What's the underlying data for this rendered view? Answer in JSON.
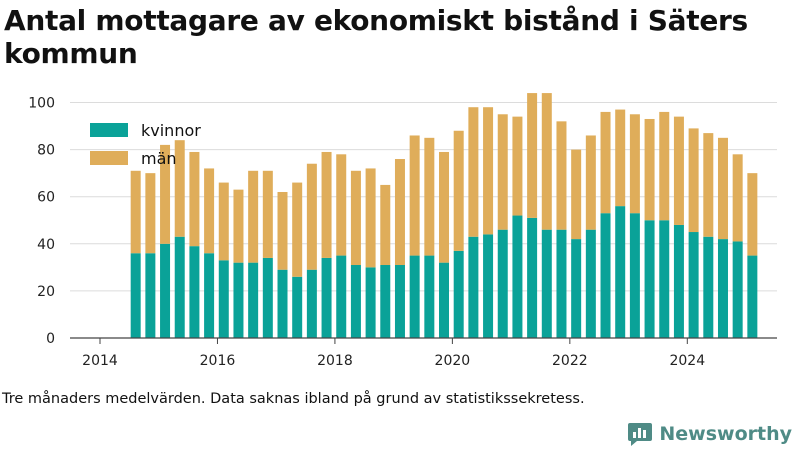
{
  "title": "Antal mottagare av ekonomiskt bistånd i Säters kommun",
  "note": "Tre månaders medelvärden. Data saknas ibland på grund av statistikssekretess.",
  "brand": {
    "name": "Newsworthy",
    "icon": "chat-bubble-bar-chart-icon"
  },
  "chart_data": {
    "type": "bar",
    "stacked": true,
    "title": "Antal mottagare av ekonomiskt bistånd i Säters kommun",
    "x_start": "2014-04",
    "x_step_months": 3,
    "x_ticks": [
      2014,
      2016,
      2018,
      2020,
      2022,
      2024
    ],
    "y_ticks": [
      0,
      20,
      40,
      60,
      80,
      100
    ],
    "ylim": [
      0,
      110
    ],
    "grid": true,
    "legend_position": "top-left",
    "series": [
      {
        "name": "kvinnor",
        "color": "#0aa298",
        "values": [
          36,
          36,
          40,
          43,
          39,
          36,
          33,
          32,
          32,
          34,
          29,
          26,
          29,
          34,
          35,
          31,
          30,
          31,
          31,
          35,
          35,
          32,
          37,
          43,
          44,
          46,
          52,
          51,
          46,
          46,
          42,
          46,
          53,
          56,
          53,
          50,
          50,
          48,
          45,
          43,
          42,
          41,
          35
        ]
      },
      {
        "name": "män",
        "color": "#dfad5a",
        "values": [
          35,
          34,
          42,
          41,
          40,
          36,
          33,
          31,
          39,
          37,
          33,
          40,
          45,
          45,
          43,
          40,
          42,
          34,
          45,
          51,
          50,
          47,
          51,
          55,
          54,
          49,
          42,
          53,
          58,
          46,
          38,
          40,
          43,
          41,
          42,
          43,
          46,
          46,
          44,
          44,
          43,
          37,
          35
        ]
      }
    ]
  }
}
